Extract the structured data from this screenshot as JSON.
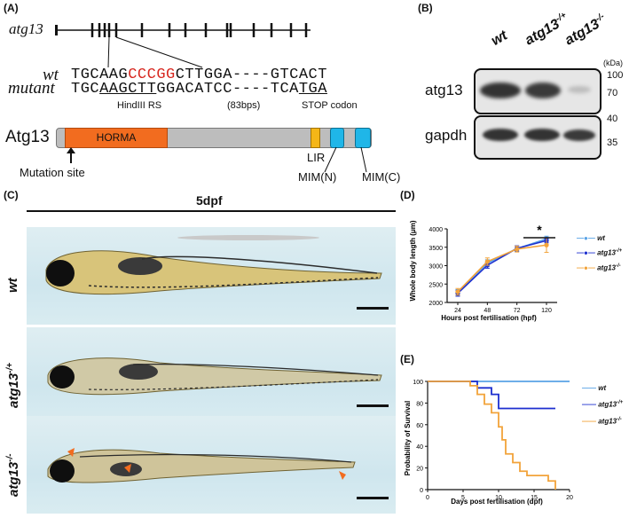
{
  "panelA": {
    "label": "(A)",
    "gene": "atg13",
    "wt_label": "wt",
    "mutant_label": "mutant",
    "wt_seq_prefix": "TGCAAG",
    "wt_seq_highlight": "CCCGG",
    "wt_seq_suffix": "CTTGGA----GTCACT",
    "mut_seq_prefix": "TGC",
    "mut_seq_underlined": "AAGCTT",
    "mut_seq_mid": "GGACATCC----TCA",
    "mut_seq_stop": "TGA",
    "hindiii": "HindIII RS",
    "bps": "(83bps)",
    "stop": "STOP codon",
    "protein": "Atg13",
    "horma": "HORMA",
    "mutation_site": "Mutation site",
    "lir": "LIR",
    "mim_n": "MIM(N)",
    "mim_c": "MIM(C)",
    "colors": {
      "horma": "#f26c1f",
      "lir": "#f5b617",
      "mim": "#1fb6e8",
      "protein": "#bdbdbd",
      "mutant_red": "#d7261e"
    }
  },
  "panelB": {
    "label": "(B)",
    "lanes": [
      "wt",
      "atg13",
      "atg13"
    ],
    "lane_sups": [
      "",
      "-/+",
      "-/-"
    ],
    "kda": "(kDa)",
    "atg13_label": "atg13",
    "gapdh_label": "gapdh",
    "marks_top": [
      "100",
      "70"
    ],
    "marks_bottom": [
      "40",
      "35"
    ]
  },
  "panelC": {
    "label": "(C)",
    "title": "5dpf",
    "rows": [
      {
        "main": "wt",
        "sup": ""
      },
      {
        "main": "atg13",
        "sup": "-/+"
      },
      {
        "main": "atg13",
        "sup": "-/-"
      }
    ]
  },
  "panelD": {
    "label": "(D)",
    "significance": "*",
    "legend": [
      {
        "main": "wt",
        "sup": "",
        "color": "#5aa3e6"
      },
      {
        "main": "atg13",
        "sup": "-/+",
        "color": "#1d2fcf"
      },
      {
        "main": "atg13",
        "sup": "-/-",
        "color": "#f2a33a"
      }
    ]
  },
  "panelE": {
    "label": "(E)",
    "legend": [
      {
        "main": "wt",
        "sup": "",
        "color": "#5aa3e6"
      },
      {
        "main": "atg13",
        "sup": "-/+",
        "color": "#1d2fcf"
      },
      {
        "main": "atg13",
        "sup": "-/-",
        "color": "#f2a33a"
      }
    ]
  },
  "chart_data": [
    {
      "type": "line",
      "xlabel": "Hours post fertilisation (hpf)",
      "ylabel": "Whole body length (μm)",
      "x": [
        24,
        48,
        72,
        120
      ],
      "x_ticks": [
        "24",
        "48",
        "72",
        "120"
      ],
      "y_ticks": [
        "2000",
        "2500",
        "3000",
        "3500",
        "4000"
      ],
      "ylim": [
        2000,
        4000
      ],
      "series": [
        {
          "name": "wt",
          "values": [
            2270,
            3070,
            3460,
            3730
          ],
          "errors": [
            80,
            90,
            70,
            70
          ],
          "color": "#5aa3e6"
        },
        {
          "name": "atg13-/+",
          "values": [
            2250,
            3010,
            3470,
            3680
          ],
          "errors": [
            80,
            80,
            70,
            60
          ],
          "color": "#1d2fcf"
        },
        {
          "name": "atg13-/-",
          "values": [
            2290,
            3110,
            3450,
            3560
          ],
          "errors": [
            90,
            100,
            80,
            200
          ],
          "color": "#f2a33a"
        }
      ]
    },
    {
      "type": "line",
      "xlabel": "Days post fertilisation (dpf)",
      "ylabel": "Probability of Survival",
      "x_ticks": [
        "0",
        "5",
        "10",
        "15",
        "20"
      ],
      "y_ticks": [
        "0",
        "20",
        "40",
        "60",
        "80",
        "100"
      ],
      "xlim": [
        0,
        20
      ],
      "ylim": [
        0,
        100
      ],
      "series": [
        {
          "name": "wt",
          "color": "#5aa3e6",
          "steps": [
            [
              0,
              100
            ],
            [
              20,
              100
            ]
          ]
        },
        {
          "name": "atg13-/+",
          "color": "#1d2fcf",
          "steps": [
            [
              0,
              100
            ],
            [
              7,
              100
            ],
            [
              7,
              94
            ],
            [
              9,
              94
            ],
            [
              9,
              88
            ],
            [
              10,
              88
            ],
            [
              10,
              75
            ],
            [
              18,
              75
            ]
          ]
        },
        {
          "name": "atg13-/-",
          "color": "#f2a33a",
          "steps": [
            [
              0,
              100
            ],
            [
              6,
              100
            ],
            [
              6,
              96
            ],
            [
              7,
              96
            ],
            [
              7,
              88
            ],
            [
              8,
              88
            ],
            [
              8,
              79
            ],
            [
              9,
              79
            ],
            [
              9,
              71
            ],
            [
              10,
              71
            ],
            [
              10,
              58
            ],
            [
              10.5,
              58
            ],
            [
              10.5,
              46
            ],
            [
              11,
              46
            ],
            [
              11,
              33
            ],
            [
              12,
              33
            ],
            [
              12,
              25
            ],
            [
              13,
              25
            ],
            [
              13,
              17
            ],
            [
              14,
              17
            ],
            [
              14,
              13
            ],
            [
              17,
              13
            ],
            [
              17,
              8
            ],
            [
              18,
              8
            ],
            [
              18,
              0
            ]
          ]
        }
      ]
    }
  ]
}
